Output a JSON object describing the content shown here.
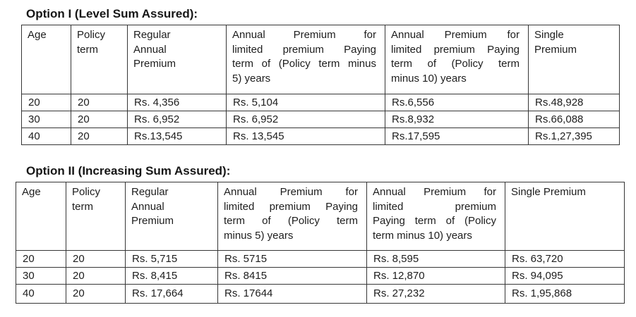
{
  "page": {
    "background_color": "#ffffff",
    "text_color": "#1d1d1d",
    "border_color": "#363636"
  },
  "tables": [
    {
      "title": "Option I (Level Sum Assured):",
      "headers": [
        {
          "label": "Age",
          "lines": [
            "Age"
          ]
        },
        {
          "label": "Policy term",
          "lines": [
            "Policy",
            "term"
          ]
        },
        {
          "label": "Regular Annual Premium",
          "lines": [
            "Regular",
            "Annual",
            "Premium"
          ]
        },
        {
          "label": "Annual Premium for limited premium Paying term of (Policy term minus 5) years",
          "lines": [
            "Annual Premium for",
            "limited premium Paying",
            "term of (Policy term minus",
            "5) years"
          ]
        },
        {
          "label": "Annual Premium for limited premium Paying term of (Policy term minus 10) years",
          "lines": [
            "Annual Premium for",
            "limited premium Paying",
            "term of (Policy term",
            "minus 10) years"
          ]
        },
        {
          "label": "Single Premium",
          "lines": [
            "Single",
            "Premium"
          ]
        }
      ],
      "rows": [
        [
          "20",
          "20",
          "Rs. 4,356",
          "Rs. 5,104",
          "Rs.6,556",
          "Rs.48,928"
        ],
        [
          "30",
          "20",
          "Rs. 6,952",
          "Rs. 6,952",
          "Rs.8,932",
          "Rs.66,088"
        ],
        [
          "40",
          "20",
          "Rs.13,545",
          "Rs. 13,545",
          "Rs.17,595",
          "Rs.1,27,395"
        ]
      ]
    },
    {
      "title": "Option II (Increasing Sum Assured):",
      "headers": [
        {
          "label": "Age",
          "lines": [
            "Age"
          ]
        },
        {
          "label": "Policy term",
          "lines": [
            "Policy",
            "term"
          ]
        },
        {
          "label": "Regular Annual Premium",
          "lines": [
            "Regular",
            "Annual",
            "Premium"
          ]
        },
        {
          "label": "Annual Premium for limited premium Paying term of (Policy term minus 5) years",
          "lines": [
            "Annual Premium for",
            "limited premium Paying",
            "term of (Policy term",
            "minus 5) years"
          ]
        },
        {
          "label": "Annual Premium for limited premium Paying term of (Policy term minus 10) years",
          "lines": [
            "Annual Premium for",
            "limited premium",
            "Paying term of (Policy",
            "term minus 10) years"
          ]
        },
        {
          "label": "Single Premium",
          "lines": [
            "Single Premium"
          ]
        }
      ],
      "rows": [
        [
          "20",
          "20",
          "Rs. 5,715",
          "Rs. 5715",
          "Rs. 8,595",
          "Rs. 63,720"
        ],
        [
          "30",
          "20",
          "Rs. 8,415",
          "Rs. 8415",
          "Rs. 12,870",
          "Rs. 94,095"
        ],
        [
          "40",
          "20",
          "Rs. 17,664",
          "Rs. 17644",
          "Rs. 27,232",
          "Rs. 1,95,868"
        ]
      ]
    }
  ]
}
